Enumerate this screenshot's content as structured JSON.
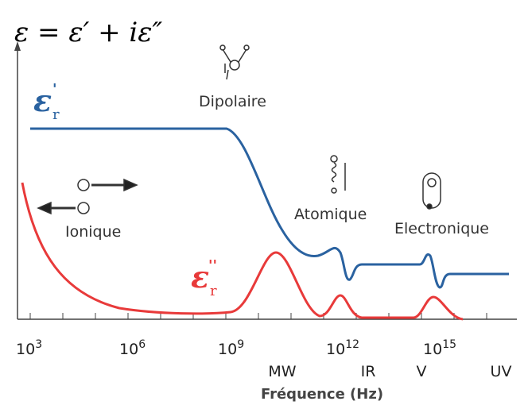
{
  "formula": "ε = ε′ + iε″",
  "curves": {
    "real": {
      "symbol": "ε",
      "subscript": "r",
      "prime": "'"
    },
    "imaginary": {
      "symbol": "ε",
      "subscript": "r",
      "prime": "''"
    }
  },
  "mechanisms": [
    "Ionique",
    "Dipolaire",
    "Atomique",
    "Electronique"
  ],
  "x_ticks": [
    {
      "base": "10",
      "exponent": "3"
    },
    {
      "base": "10",
      "exponent": "6"
    },
    {
      "base": "10",
      "exponent": "9"
    },
    {
      "base": "10",
      "exponent": "12"
    },
    {
      "base": "10",
      "exponent": "15"
    }
  ],
  "bands": [
    "MW",
    "IR",
    "V",
    "UV"
  ],
  "x_label": "Fréquence (Hz)"
}
